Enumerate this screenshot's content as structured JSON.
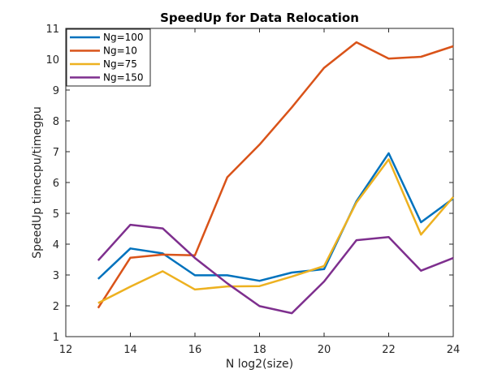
{
  "chart_data": {
    "type": "line",
    "title": "SpeedUp for Data Relocation",
    "xlabel": "N log2(size)",
    "ylabel": "SpeedUp timecpu/timegpu",
    "xlim": [
      12,
      24
    ],
    "ylim": [
      1,
      11
    ],
    "xticks": [
      "12",
      "14",
      "16",
      "18",
      "20",
      "22",
      "24"
    ],
    "yticks": [
      "1",
      "2",
      "3",
      "4",
      "5",
      "6",
      "7",
      "8",
      "9",
      "10",
      "11"
    ],
    "grid": false,
    "legend_position": "top-left",
    "x": [
      13,
      14,
      15,
      16,
      17,
      18,
      19,
      20,
      21,
      22,
      23,
      24
    ],
    "series": [
      {
        "name": "Ng=100",
        "color": "#0072BD",
        "values": [
          2.87,
          3.86,
          3.7,
          2.99,
          2.99,
          2.81,
          3.08,
          3.19,
          5.39,
          6.95,
          4.71,
          5.48
        ]
      },
      {
        "name": "Ng=10",
        "color": "#D95319",
        "values": [
          1.93,
          3.56,
          3.66,
          3.64,
          6.17,
          7.23,
          8.44,
          9.72,
          10.55,
          10.02,
          10.08,
          10.42
        ]
      },
      {
        "name": "Ng=75",
        "color": "#EDB120",
        "values": [
          2.09,
          2.62,
          3.12,
          2.53,
          2.63,
          2.64,
          2.95,
          3.29,
          5.35,
          6.75,
          4.31,
          5.53
        ]
      },
      {
        "name": "Ng=150",
        "color": "#7E2F8E",
        "values": [
          3.47,
          4.63,
          4.51,
          3.55,
          2.73,
          1.99,
          1.76,
          2.79,
          4.13,
          4.23,
          3.14,
          3.55
        ]
      }
    ]
  }
}
